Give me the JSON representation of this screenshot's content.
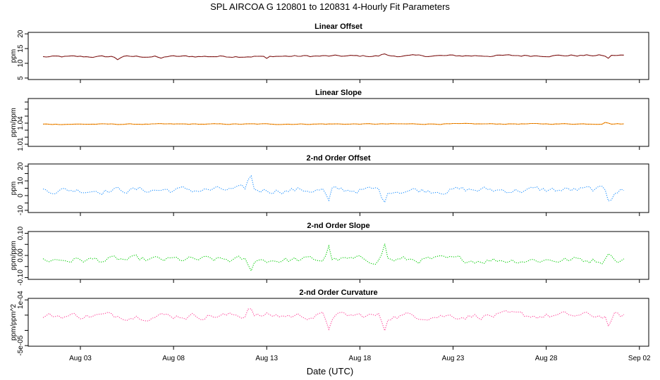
{
  "figure": {
    "title": "SPL   AIRCOA G   120801 to 120831   4-Hourly Fit Parameters",
    "xlabel": "Date (UTC)",
    "x_tick_labels": [
      "Aug 03",
      "Aug 08",
      "Aug 13",
      "Aug 18",
      "Aug 23",
      "Aug 28",
      "Sep 02"
    ],
    "x_tick_days": [
      3,
      8,
      13,
      18,
      23,
      28,
      33
    ],
    "xlim_days": [
      0.2,
      33.5
    ],
    "data_day_range": [
      1,
      32.2
    ]
  },
  "chart_data": [
    {
      "type": "line",
      "title": "Linear Offset",
      "ylabel": "ppm",
      "ylim": [
        4.5,
        20.5
      ],
      "yticks": [
        5,
        10,
        15,
        20
      ],
      "ytick_labels": [
        "5",
        "10",
        "15",
        "20"
      ],
      "color": "#8b1a1a",
      "style": "solid",
      "base": 12.2,
      "trend": 0.5,
      "noise": 0.45,
      "spikes": [
        [
          5.0,
          -0.9
        ],
        [
          7.3,
          -0.8
        ],
        [
          13.0,
          -0.9
        ],
        [
          19.3,
          0.8
        ],
        [
          31.3,
          -1.0
        ]
      ]
    },
    {
      "type": "line",
      "title": "Linear Slope",
      "ylabel": "ppm/ppm",
      "ylim": [
        1.007,
        1.075
      ],
      "yticks": [
        1.01,
        1.04
      ],
      "ytick_labels": [
        "1.01",
        "1.04"
      ],
      "extra_ticks": [
        1.02,
        1.03,
        1.05,
        1.06,
        1.07
      ],
      "color": "#ff8c00",
      "style": "solid",
      "base": 1.0385,
      "trend": 0.0005,
      "noise": 0.0008,
      "spikes": [
        [
          31.2,
          0.0028
        ]
      ]
    },
    {
      "type": "line",
      "title": "2-nd Order Offset",
      "ylabel": "ppm",
      "ylim": [
        -11.5,
        21.5
      ],
      "yticks": [
        -10,
        0,
        10,
        20
      ],
      "ytick_labels": [
        "-10",
        "0",
        "10",
        "20"
      ],
      "extra_ticks": [
        -5,
        5,
        15
      ],
      "color": "#1e90ff",
      "style": "dotted",
      "base": 3.8,
      "trend": 0,
      "noise": 3.3,
      "spikes": [
        [
          12.1,
          10.5
        ],
        [
          16.3,
          -9.0
        ],
        [
          19.3,
          -10.0
        ],
        [
          31.4,
          -8.0
        ]
      ]
    },
    {
      "type": "line",
      "title": "2-nd Order Slope",
      "ylabel": "ppm/ppm",
      "ylim": [
        -0.108,
        0.108
      ],
      "yticks": [
        -0.1,
        0.0,
        0.1
      ],
      "ytick_labels": [
        "-0.10",
        "0.00",
        "0.10"
      ],
      "extra_ticks": [
        -0.05,
        0.05
      ],
      "color": "#00cc00",
      "style": "dotted",
      "base": -0.02,
      "trend": 0,
      "noise": 0.022,
      "spikes": [
        [
          12.1,
          -0.055
        ],
        [
          16.3,
          0.06
        ],
        [
          19.3,
          0.075
        ],
        [
          31.4,
          0.05
        ]
      ]
    },
    {
      "type": "line",
      "title": "2-nd Order Curvature",
      "ylabel": "ppm/ppm^2",
      "ylim": [
        -5.2e-05,
        0.000105
      ],
      "yticks": [
        -5e-05,
        0.0001
      ],
      "ytick_labels": [
        "-5e-05",
        "1e-04"
      ],
      "extra_ticks": [
        0,
        5e-05
      ],
      "color": "#ff3e96",
      "style": "dotted",
      "base": 4.8e-05,
      "trend": 0,
      "noise": 1.6e-05,
      "spikes": [
        [
          12.1,
          4.2e-05
        ],
        [
          16.3,
          -4.3e-05
        ],
        [
          19.3,
          -4.8e-05
        ],
        [
          31.4,
          -3.6e-05
        ]
      ]
    }
  ]
}
